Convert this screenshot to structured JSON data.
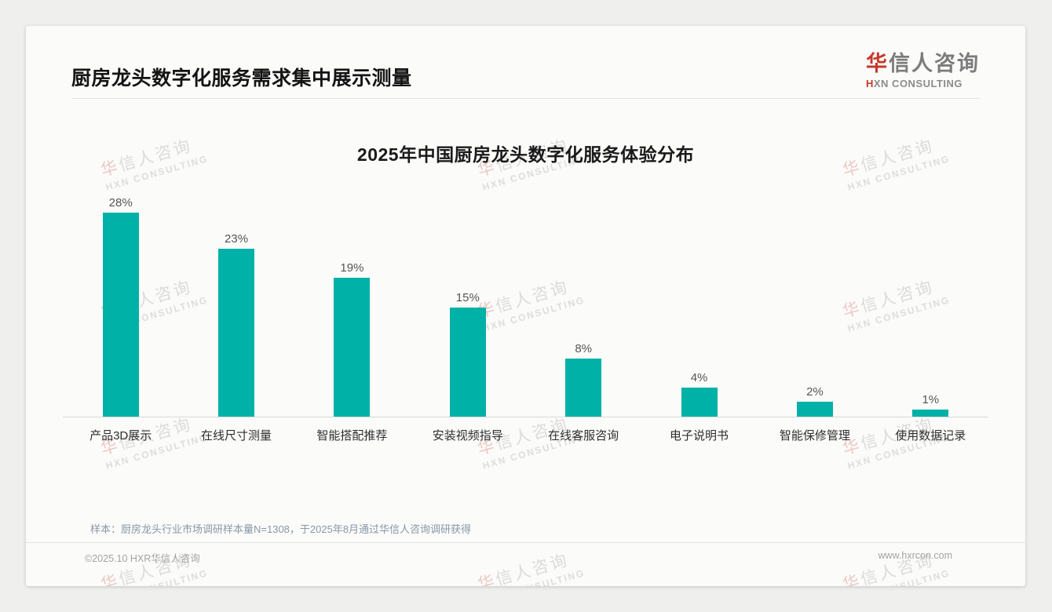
{
  "page": {
    "title": "厨房龙头数字化服务需求集中展示测量"
  },
  "logo": {
    "cn_first": "华",
    "cn_rest": "信人咨询",
    "en_first": "H",
    "en_rest": "XN CONSULTING"
  },
  "watermark": {
    "cn_first": "华",
    "cn_rest": "信人咨询",
    "en": "HXN CONSULTING"
  },
  "chart_data": {
    "type": "bar",
    "title": "2025年中国厨房龙头数字化服务体验分布",
    "categories": [
      "产品3D展示",
      "在线尺寸测量",
      "智能搭配推荐",
      "安装视频指导",
      "在线客服咨询",
      "电子说明书",
      "智能保修管理",
      "使用数据记录"
    ],
    "values": [
      28,
      23,
      19,
      15,
      8,
      4,
      2,
      1
    ],
    "unit": "%",
    "bar_color": "#00b1a7",
    "value_label_color": "#565656",
    "ylim": [
      0,
      30
    ],
    "grid": false,
    "legend": false,
    "data_labels": true,
    "xlabel": "",
    "ylabel": ""
  },
  "note": "样本：厨房龙头行业市场调研样本量N=1308，于2025年8月通过华信人咨询调研获得",
  "footer": {
    "left": "©2025.10 HXR华信人咨询",
    "right": "www.hxrcon.com"
  }
}
